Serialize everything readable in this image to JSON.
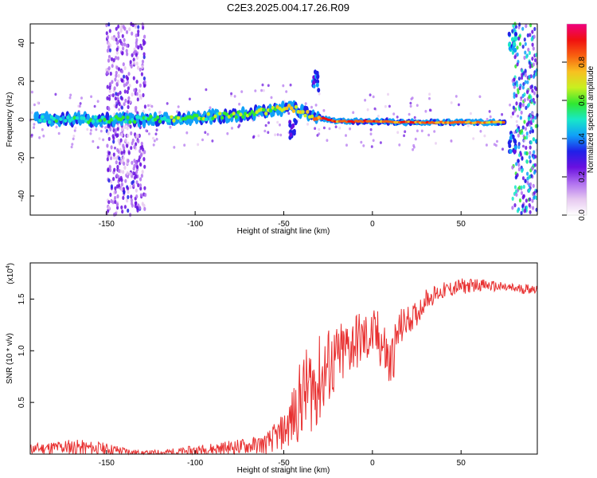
{
  "title": "C2E3.2025.004.17.26.R09",
  "colors": {
    "snr_line": "#e83030",
    "spectrogram_colormap": [
      "#ffffff",
      "#e6c8f0",
      "#b070f0",
      "#6a10e0",
      "#2020e8",
      "#10a0f8",
      "#18e8c8",
      "#30e830",
      "#c8f020",
      "#f8c020",
      "#f86010",
      "#f01010",
      "#f00080"
    ]
  },
  "chart_data": [
    {
      "type": "heatmap",
      "xlabel": "Height of straight line (km)",
      "ylabel": "Frequency (Hz)",
      "xlim": [
        -193,
        93
      ],
      "ylim": [
        -50,
        50
      ],
      "xticks": [
        -150,
        -100,
        -50,
        0,
        50
      ],
      "yticks": [
        -40,
        -20,
        0,
        20,
        40
      ],
      "colorbar": {
        "label": "Normalized spectral amplitude",
        "range": [
          0,
          1
        ],
        "ticks": [
          "0.0",
          "0.2",
          "0.4",
          "0.6",
          "0.8"
        ],
        "tick_values": [
          0,
          0.2,
          0.4,
          0.6,
          0.8
        ]
      },
      "ridge": {
        "x": [
          -190,
          -170,
          -150,
          -130,
          -110,
          -90,
          -70,
          -55,
          -45,
          -35,
          -30,
          -20,
          -10,
          0,
          20,
          40,
          60,
          75
        ],
        "frequency": [
          0,
          0,
          0,
          0,
          0.5,
          1.5,
          3,
          5,
          6,
          2,
          1,
          -1,
          -1,
          -1,
          -1.5,
          -1.5,
          -1.5,
          -1.5
        ],
        "amplitude": [
          0.5,
          0.5,
          0.55,
          0.55,
          0.6,
          0.6,
          0.6,
          0.65,
          0.7,
          0.7,
          0.8,
          0.85,
          0.85,
          0.85,
          0.85,
          0.8,
          0.8,
          0.75
        ]
      },
      "noise_bands": [
        {
          "x_range": [
            -150,
            -128
          ],
          "amplitude": 0.25
        },
        {
          "x_range": [
            79,
            93
          ],
          "amplitude": 0.5
        }
      ],
      "features": [
        {
          "x": -32,
          "frequency": 20,
          "amplitude": 0.4
        },
        {
          "x": -45,
          "frequency": -5,
          "amplitude": 0.35
        },
        {
          "x": 79,
          "frequency": 40,
          "amplitude": 0.45
        },
        {
          "x": 79,
          "frequency": -12,
          "amplitude": 0.4
        }
      ]
    },
    {
      "type": "line",
      "xlabel": "Height of straight line (km)",
      "ylabel": "SNR (10 * v/v)",
      "y_scale_label": "(x10",
      "y_scale_exp": "4",
      "xlim": [
        -193,
        93
      ],
      "ylim": [
        0,
        1.85
      ],
      "xticks": [
        -150,
        -100,
        -50,
        0,
        50
      ],
      "yticks": [
        "0.5",
        "1.0",
        "1.5"
      ],
      "ytick_values": [
        0.5,
        1.0,
        1.5
      ],
      "series": [
        {
          "x": [
            -193,
            -170,
            -150,
            -130,
            -110,
            -90,
            -70,
            -60,
            -50,
            -45,
            -40,
            -35,
            -30,
            -25,
            -20,
            -15,
            -10,
            -5,
            0,
            5,
            10,
            15,
            20,
            25,
            30,
            40,
            50,
            60,
            70,
            80,
            93
          ],
          "y": [
            0.05,
            0.07,
            0.05,
            0.01,
            0.02,
            0.05,
            0.08,
            0.1,
            0.22,
            0.35,
            0.55,
            0.65,
            0.7,
            0.85,
            0.9,
            1.0,
            1.1,
            1.1,
            1.15,
            1.1,
            0.85,
            1.2,
            1.3,
            1.35,
            1.5,
            1.58,
            1.62,
            1.64,
            1.62,
            1.6,
            1.6
          ],
          "noise": [
            0.05,
            0.08,
            0.06,
            0.02,
            0.04,
            0.06,
            0.08,
            0.1,
            0.18,
            0.3,
            0.4,
            0.45,
            0.45,
            0.4,
            0.35,
            0.32,
            0.3,
            0.28,
            0.25,
            0.3,
            0.3,
            0.2,
            0.14,
            0.12,
            0.1,
            0.08,
            0.08,
            0.06,
            0.05,
            0.05,
            0.05
          ]
        }
      ]
    }
  ]
}
